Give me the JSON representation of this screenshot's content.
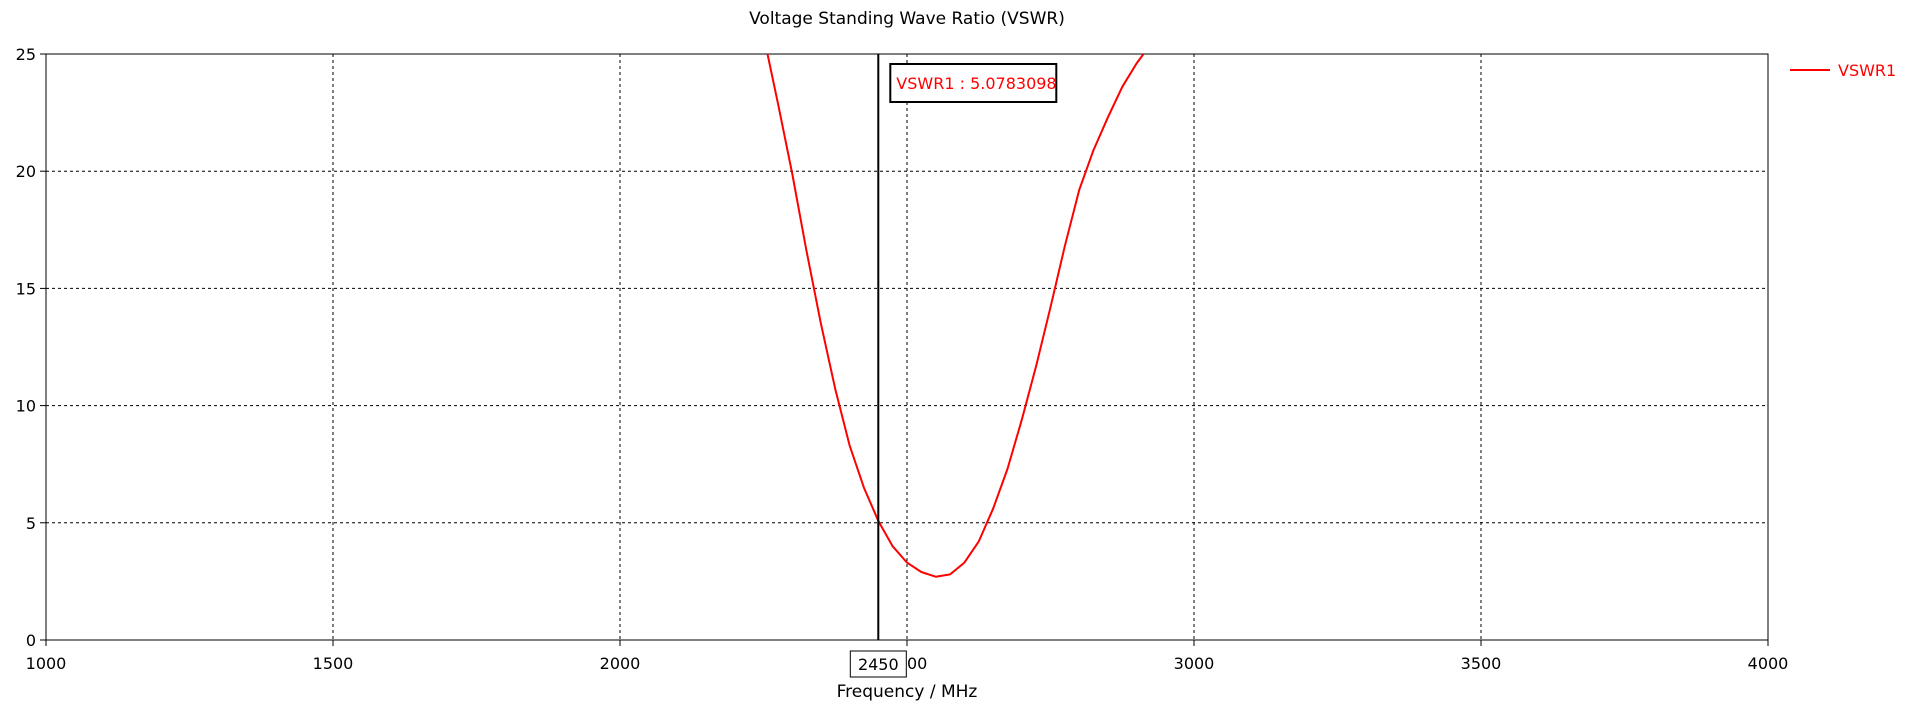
{
  "chart_data": {
    "type": "line",
    "title": "Voltage Standing Wave Ratio (VSWR)",
    "xlabel": "Frequency / MHz",
    "ylabel": "",
    "xlim": [
      1000,
      4000
    ],
    "ylim": [
      0,
      25
    ],
    "x_ticks": [
      1000,
      1500,
      2000,
      2500,
      3000,
      3500,
      4000
    ],
    "y_ticks": [
      0,
      5,
      10,
      15,
      20,
      25
    ],
    "grid": true,
    "legend_position": "right",
    "series": [
      {
        "name": "VSWR1",
        "color": "#ff0000",
        "x": [
          2257,
          2275,
          2300,
          2325,
          2350,
          2375,
          2400,
          2425,
          2450,
          2475,
          2500,
          2525,
          2550,
          2575,
          2600,
          2625,
          2650,
          2675,
          2700,
          2725,
          2750,
          2775,
          2800,
          2825,
          2850,
          2875,
          2900,
          2912
        ],
        "y": [
          25.0,
          22.9,
          19.9,
          16.6,
          13.5,
          10.7,
          8.3,
          6.5,
          5.08,
          4.0,
          3.3,
          2.9,
          2.7,
          2.8,
          3.3,
          4.2,
          5.6,
          7.3,
          9.4,
          11.7,
          14.2,
          16.8,
          19.2,
          20.9,
          22.3,
          23.6,
          24.6,
          25.0
        ]
      }
    ],
    "marker": {
      "x": 2450,
      "x_label": "2450",
      "label": "VSWR1 : 5.0783098",
      "color": "#ff0000"
    }
  }
}
